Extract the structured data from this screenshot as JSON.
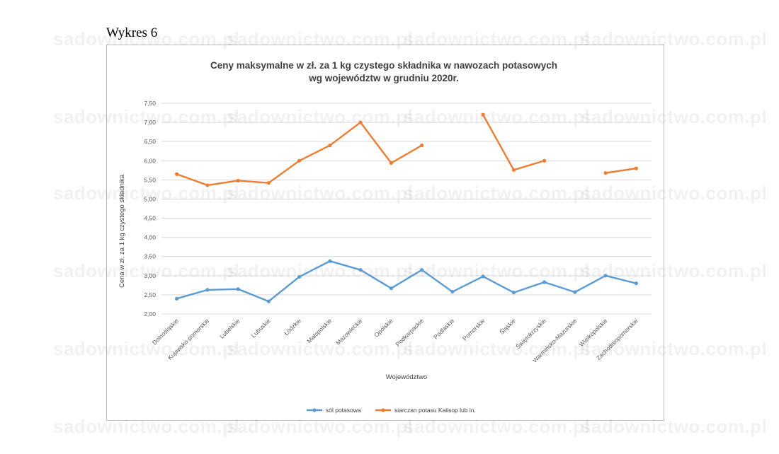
{
  "page": {
    "heading": "Wykres 6",
    "watermark": "sadownictwo.com.pl"
  },
  "chart_data": {
    "type": "line",
    "title_line1": "Ceny maksymalne w zł. za 1 kg czystego składnika w nawozach potasowych",
    "title_line2": "wg województw w grudniu 2020r.",
    "xlabel": "Województwo",
    "ylabel": "Cena w zł. za 1 kg czystego składnika",
    "ylim": [
      2.0,
      7.5
    ],
    "ytick_step": 0.5,
    "yticks": [
      "2,00",
      "2,50",
      "3,00",
      "3,50",
      "4,00",
      "4,50",
      "5,00",
      "5,50",
      "6,00",
      "6,50",
      "7,00",
      "7,50"
    ],
    "grid": true,
    "legend_position": "bottom",
    "categories": [
      "Dolnośląskie",
      "Kujawsko-pomorskie",
      "Lubelskie",
      "Lubuskie",
      "Łódzkie",
      "Małopolskie",
      "Mazowieckie",
      "Opolskie",
      "Podkarpackie",
      "Podlaskie",
      "Pomorskie",
      "Śląskie",
      "Świętokrzyskie",
      "Warmińsko-Mazurskie",
      "Wielkopolskie",
      "Zachodniopomorskie"
    ],
    "series": [
      {
        "name": "sól potasowa",
        "color": "#5b9bd5",
        "values": [
          2.4,
          2.63,
          2.65,
          2.33,
          2.97,
          3.38,
          3.15,
          2.67,
          3.15,
          2.58,
          2.98,
          2.56,
          2.83,
          2.57,
          3.0,
          2.8
        ]
      },
      {
        "name": "siarczan potasu Kalisop lub in.",
        "color": "#ed7d31",
        "values": [
          5.65,
          5.36,
          5.48,
          5.42,
          6.0,
          6.4,
          7.0,
          5.94,
          6.4,
          null,
          7.2,
          5.76,
          6.0,
          null,
          5.68,
          5.8
        ]
      }
    ]
  }
}
